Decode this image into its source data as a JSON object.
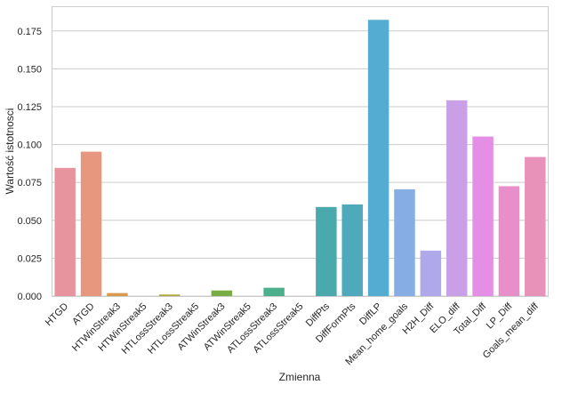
{
  "chart_data": {
    "type": "bar",
    "title": "",
    "xlabel": "Zmienna",
    "ylabel": "Wartość istotnosci",
    "ylim": [
      0,
      0.191
    ],
    "yticks": [
      "0.000",
      "0.025",
      "0.050",
      "0.075",
      "0.100",
      "0.125",
      "0.150",
      "0.175"
    ],
    "grid": "horizontal",
    "categories": [
      "HTGD",
      "ATGD",
      "HTWinStreak3",
      "HTWinStreak5",
      "HTLossStreak3",
      "HTLossStreak5",
      "ATWinStreak3",
      "ATWinStreak5",
      "ATLossStreak3",
      "ATLossStreak5",
      "DiffPts",
      "DiffFormPts",
      "DiffLP",
      "Mean_home_goals",
      "H2H_Diff",
      "ELO_diff",
      "Total_Diff",
      "LP_Diff",
      "Goals_mean_diff"
    ],
    "values": [
      0.0846,
      0.0953,
      0.002,
      0.0,
      0.001,
      0.0,
      0.0037,
      0.0,
      0.0055,
      0.0,
      0.0588,
      0.0605,
      0.1823,
      0.0705,
      0.03,
      0.1292,
      0.1053,
      0.0725,
      0.0918
    ],
    "colors": [
      "#e8949f",
      "#e6977d",
      "#d99a4e",
      "#c4a044",
      "#aea33a",
      "#98a83a",
      "#78ad45",
      "#4fb065",
      "#4cb08c",
      "#4aaf9a",
      "#4aa9ad",
      "#4eaaba",
      "#54acd2",
      "#86aee5",
      "#afa8ea",
      "#c99fe6",
      "#e48ee6",
      "#e78ecb",
      "#e891b9"
    ]
  }
}
